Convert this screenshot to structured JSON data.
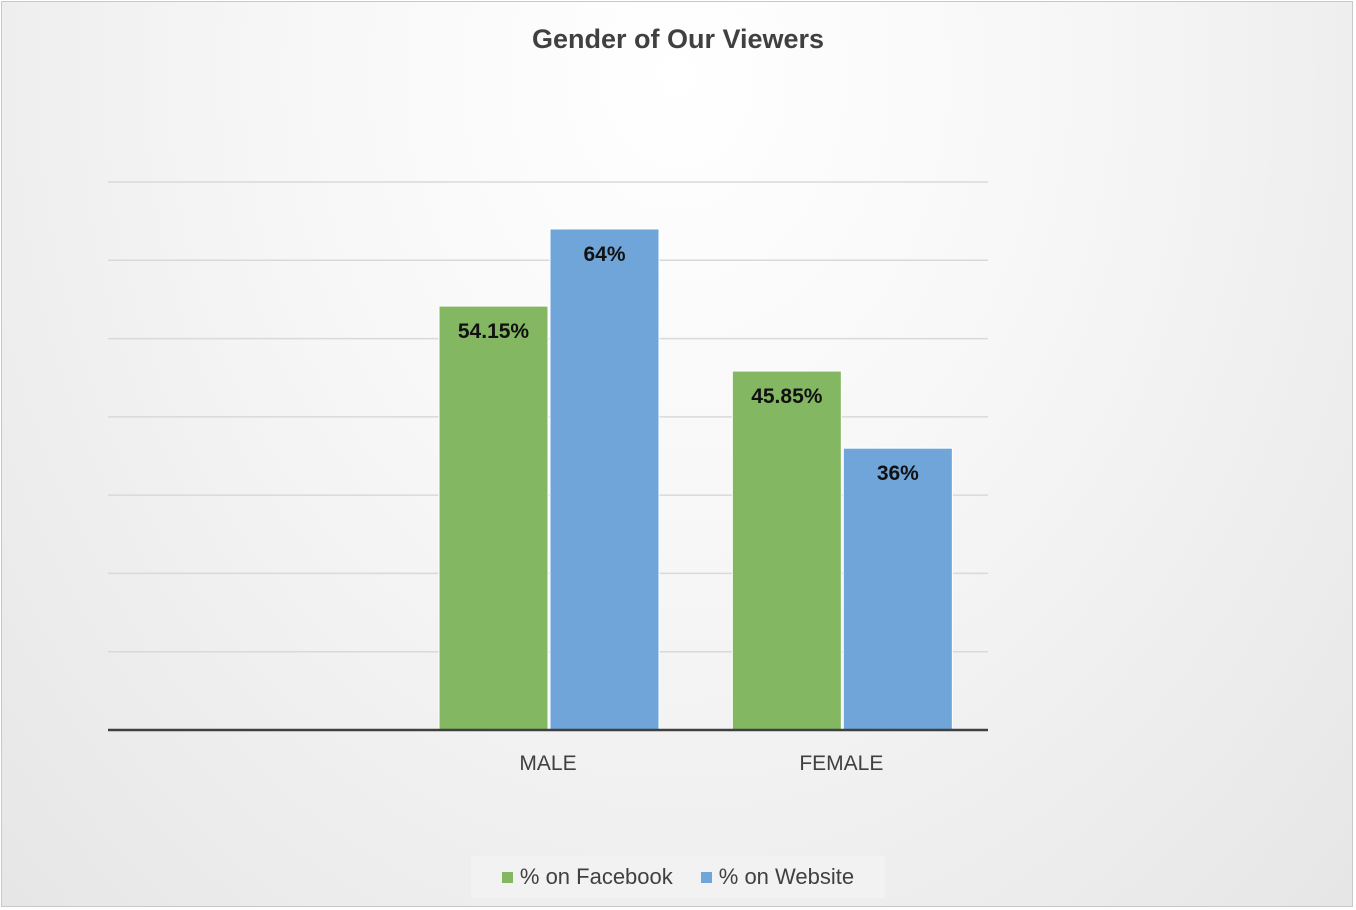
{
  "chart_data": {
    "type": "bar",
    "title": "Gender of Our Viewers",
    "xlabel": "",
    "ylabel": "",
    "categories": [
      "",
      "MALE",
      "FEMALE"
    ],
    "series": [
      {
        "name": "% on Facebook",
        "values": [
          null,
          54.15,
          45.85
        ],
        "labels": [
          "",
          "54.15%",
          "45.85%"
        ],
        "color": "#84b761"
      },
      {
        "name": "% on Website",
        "values": [
          null,
          64,
          36
        ],
        "labels": [
          "",
          "64%",
          "36%"
        ],
        "color": "#6fa5d8"
      }
    ],
    "ylim": [
      0,
      70
    ],
    "grid": true,
    "legend": "bottom"
  }
}
